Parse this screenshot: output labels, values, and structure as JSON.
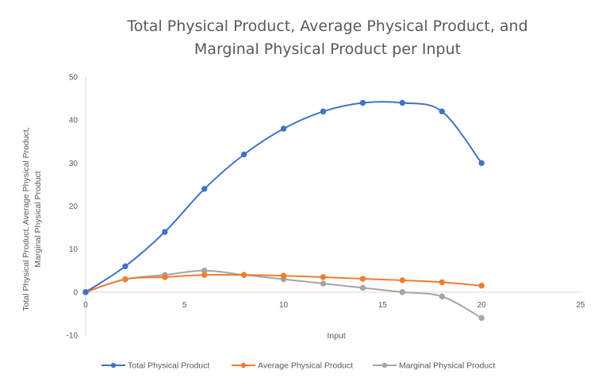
{
  "chart_data": {
    "type": "line",
    "title_lines": [
      "Total Physical Product, Average Physical Product, and",
      "Marginal Physical Product per Input"
    ],
    "xlabel": "Input",
    "ylabel_lines": [
      "Total Physical Product, Average Physical Product,",
      "Marginal Physical Product"
    ],
    "xlim": [
      0,
      25
    ],
    "ylim": [
      -10,
      50
    ],
    "x_ticks": [
      0,
      5,
      10,
      15,
      20,
      25
    ],
    "y_ticks": [
      -10,
      0,
      10,
      20,
      30,
      40,
      50
    ],
    "grid": false,
    "smooth": true,
    "legend_position": "bottom",
    "series": [
      {
        "name": "Total Physical Product",
        "color": "#4472C4",
        "x": [
          0,
          2,
          4,
          6,
          8,
          10,
          12,
          14,
          16,
          18,
          20
        ],
        "y": [
          0,
          6,
          14,
          24,
          32,
          38,
          42,
          44,
          44,
          42,
          30
        ]
      },
      {
        "name": "Average Physical Product",
        "color": "#ED7D31",
        "x": [
          0,
          2,
          4,
          6,
          8,
          10,
          12,
          14,
          16,
          18,
          20
        ],
        "y": [
          0,
          3,
          3.5,
          4,
          4,
          3.8,
          3.5,
          3.1,
          2.75,
          2.3,
          1.5
        ]
      },
      {
        "name": "Marginal Physical Product",
        "color": "#A5A5A5",
        "x": [
          0,
          2,
          4,
          6,
          8,
          10,
          12,
          14,
          16,
          18,
          20
        ],
        "y": [
          0,
          3,
          4,
          5,
          4,
          3,
          2,
          1,
          0,
          -1,
          -6
        ]
      }
    ]
  }
}
